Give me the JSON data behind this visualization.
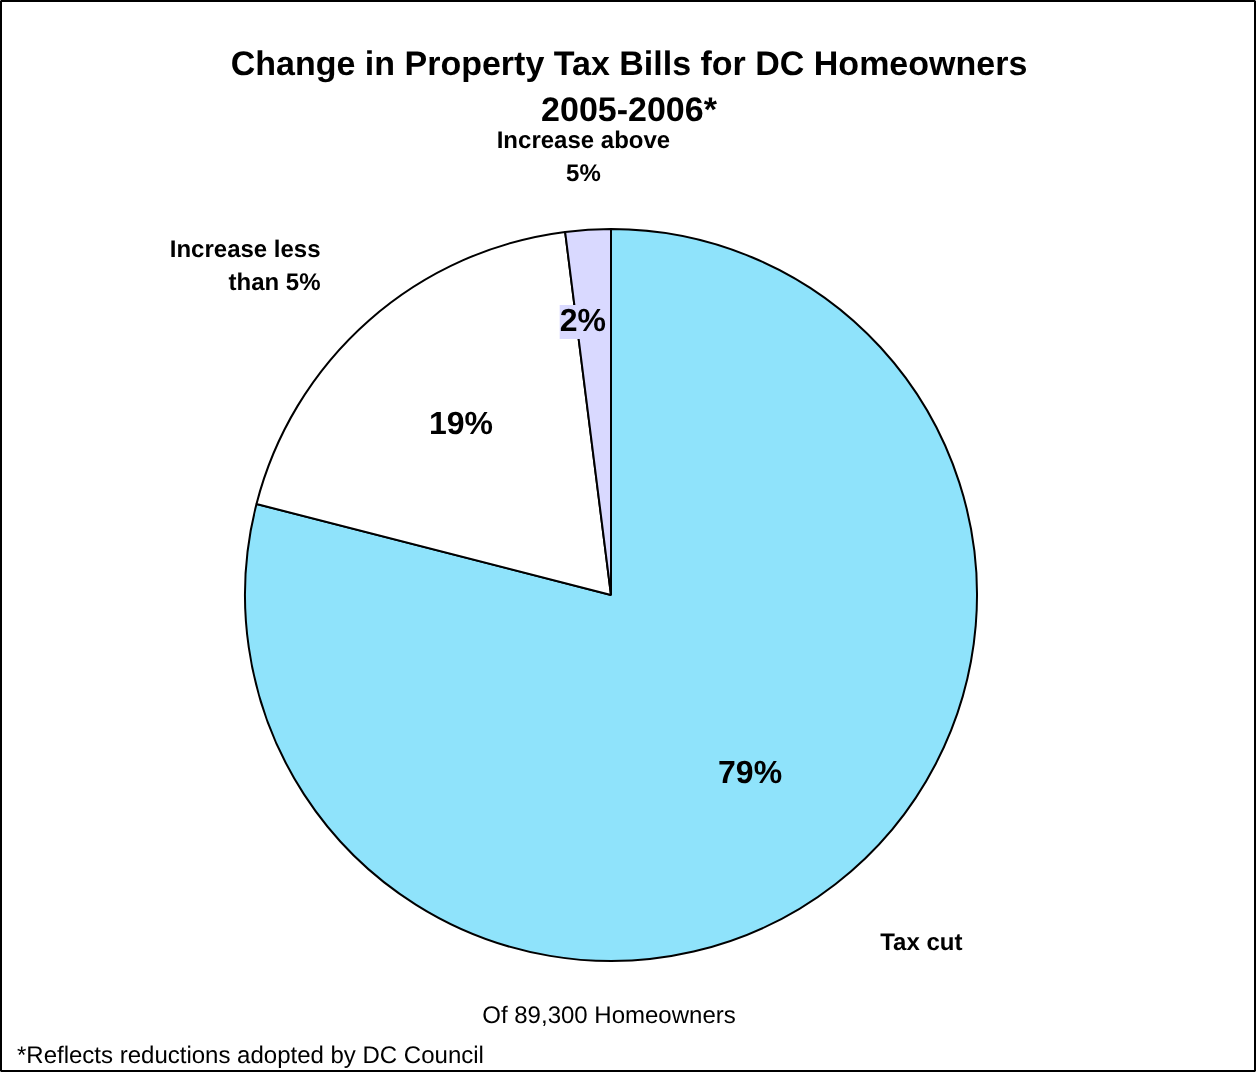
{
  "chart_data": {
    "type": "pie",
    "title": "Change in Property Tax Bills for DC Homeowners 2005-2006*",
    "categories": [
      "Tax cut",
      "Increase less than 5%",
      "Increase above 5%"
    ],
    "values": [
      79,
      19,
      2
    ],
    "colors": [
      "#8fe3fb",
      "#ffffff",
      "#d9d9ff"
    ],
    "value_labels": [
      "79%",
      "19%",
      "2%"
    ],
    "annotations": [
      "Of 89,300 Homeowners",
      "*Reflects reductions adopted by DC Council"
    ]
  }
}
